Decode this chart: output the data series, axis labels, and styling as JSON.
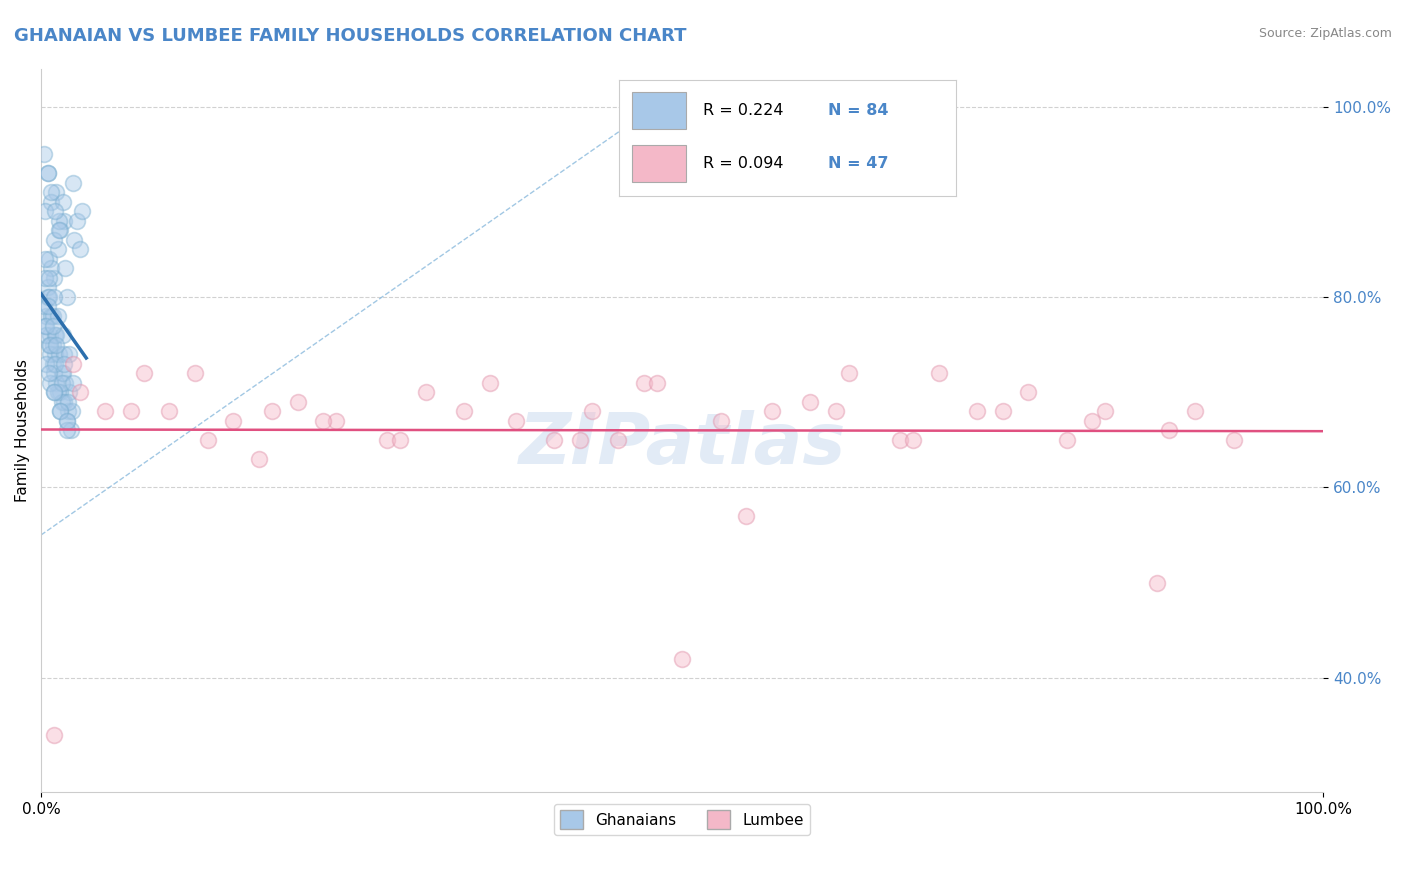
{
  "title": "GHANAIAN VS LUMBEE FAMILY HOUSEHOLDS CORRELATION CHART",
  "source_text": "Source: ZipAtlas.com",
  "ylabel": "Family Households",
  "title_color": "#4a86c8",
  "title_fontsize": 13,
  "background_color": "#ffffff",
  "plot_bg_color": "#ffffff",
  "grid_color": "#cccccc",
  "watermark": "ZIPatlas",
  "blue_color": "#a8c8e8",
  "pink_color": "#f4b8c8",
  "blue_line_color": "#2c6fad",
  "pink_line_color": "#e05080",
  "blue_edge_color": "#7aaed0",
  "pink_edge_color": "#e090a8",
  "ghanaian_x": [
    0.5,
    1.2,
    1.8,
    0.8,
    1.5,
    0.3,
    0.6,
    1.0,
    1.3,
    2.0,
    0.4,
    0.7,
    0.9,
    1.1,
    1.6,
    1.9,
    2.2,
    0.2,
    0.5,
    0.8,
    1.0,
    1.4,
    1.7,
    2.5,
    0.3,
    0.6,
    0.9,
    1.2,
    1.5,
    1.8,
    2.1,
    0.4,
    0.7,
    1.0,
    1.3,
    1.6,
    2.0,
    2.3,
    0.5,
    0.8,
    1.1,
    1.4,
    1.7,
    2.4,
    0.3,
    0.6,
    0.9,
    1.2,
    1.8,
    2.6,
    0.4,
    0.7,
    1.0,
    1.5,
    2.0,
    0.2,
    0.5,
    0.8,
    1.1,
    1.4,
    1.9,
    2.8,
    0.3,
    0.6,
    1.0,
    1.3,
    1.7,
    2.2,
    0.4,
    0.7,
    1.1,
    1.6,
    2.1,
    3.0,
    0.5,
    0.9,
    1.2,
    1.8,
    2.5,
    0.6,
    1.0,
    1.5,
    2.0,
    3.2
  ],
  "ghanaian_y": [
    93,
    91,
    88,
    90,
    87,
    89,
    84,
    82,
    85,
    80,
    78,
    76,
    75,
    74,
    72,
    71,
    70,
    79,
    81,
    83,
    86,
    88,
    90,
    92,
    77,
    75,
    73,
    71,
    70,
    69,
    68,
    76,
    74,
    72,
    70,
    69,
    67,
    66,
    80,
    78,
    76,
    74,
    72,
    68,
    82,
    80,
    78,
    76,
    74,
    86,
    73,
    71,
    70,
    68,
    66,
    95,
    93,
    91,
    89,
    87,
    83,
    88,
    84,
    82,
    80,
    78,
    76,
    74,
    77,
    75,
    73,
    71,
    69,
    85,
    79,
    77,
    75,
    73,
    71,
    72,
    70,
    68,
    67,
    89
  ],
  "lumbee_x": [
    1.0,
    2.5,
    5.0,
    8.0,
    10.0,
    13.0,
    17.0,
    20.0,
    23.0,
    27.0,
    30.0,
    33.0,
    37.0,
    40.0,
    43.0,
    47.0,
    50.0,
    53.0,
    57.0,
    60.0,
    63.0,
    67.0,
    70.0,
    73.0,
    77.0,
    80.0,
    83.0,
    87.0,
    90.0,
    93.0,
    3.0,
    7.0,
    12.0,
    18.0,
    22.0,
    28.0,
    35.0,
    42.0,
    48.0,
    55.0,
    62.0,
    68.0,
    75.0,
    82.0,
    88.0,
    15.0,
    45.0
  ],
  "lumbee_y": [
    34,
    73,
    68,
    72,
    68,
    65,
    63,
    69,
    67,
    65,
    70,
    68,
    67,
    65,
    68,
    71,
    42,
    67,
    68,
    69,
    72,
    65,
    72,
    68,
    70,
    65,
    68,
    50,
    68,
    65,
    70,
    68,
    72,
    68,
    67,
    65,
    71,
    65,
    71,
    57,
    68,
    65,
    68,
    67,
    66,
    67,
    65
  ],
  "xmin": 0,
  "xmax": 100,
  "ymin": 28,
  "ymax": 104,
  "yticks": [
    40,
    60,
    80,
    100
  ],
  "ytick_labels": [
    "40.0%",
    "60.0%",
    "80.0%",
    "100.0%"
  ],
  "xtick_labels": [
    "0.0%",
    "100.0%"
  ],
  "xtick_pos": [
    0,
    100
  ],
  "marker_size": 130,
  "marker_alpha": 0.45
}
